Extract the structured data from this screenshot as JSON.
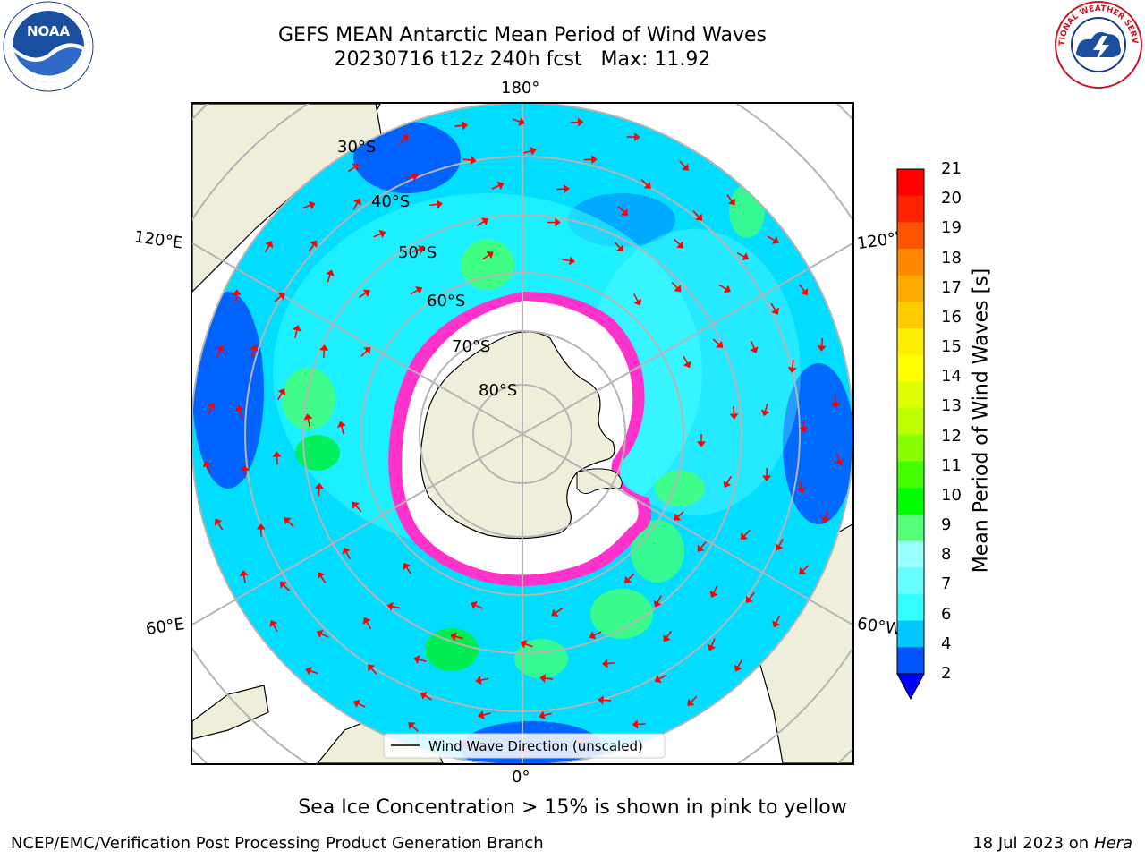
{
  "title": {
    "line1": "GEFS MEAN Antarctic Mean Period of Wind Waves",
    "line2": "20230716 t12z 240h fcst   Max: 11.92"
  },
  "map": {
    "projection": "south-polar-stereographic",
    "lon_labels": {
      "top": "180°",
      "left_upper": "120°E",
      "right_upper": "120°W",
      "left_lower": "60°E",
      "right_lower": "60°W",
      "bottom": "0°"
    },
    "lat_labels": [
      "30°S",
      "40°S",
      "50°S",
      "60°S",
      "70°S",
      "80°S"
    ],
    "legend": "Wind Wave Direction (unscaled)",
    "colors": {
      "land": "#efeedb",
      "ocean_base": "#33ffff",
      "sea_ice_pink": "#ff33cc",
      "arrow": "#ff0000"
    }
  },
  "colorbar": {
    "label": "Mean Period of Wind Waves [s]",
    "ticks": [
      "2",
      "4",
      "6",
      "7",
      "8",
      "9",
      "10",
      "11",
      "12",
      "13",
      "14",
      "15",
      "16",
      "17",
      "18",
      "19",
      "20",
      "21"
    ],
    "colors": [
      "#0055ff",
      "#00c8ff",
      "#33ffff",
      "#66ffff",
      "#99ffff",
      "#55ff77",
      "#00ff00",
      "#44ff00",
      "#88ff00",
      "#bbff00",
      "#ddff00",
      "#ffff00",
      "#ffee00",
      "#ffcc00",
      "#ffaa00",
      "#ff8800",
      "#ff5500",
      "#ff2200",
      "#ff0000"
    ],
    "extend_min_color": "#0000ff"
  },
  "caption": "Sea Ice Concentration > 15% is shown in pink to yellow",
  "footer": {
    "credit": "NCEP/EMC/Verification Post Processing Product Generation Branch",
    "date": "18 Jul 2023 on",
    "machine": "Hera"
  },
  "logos": {
    "left": "NOAA",
    "right": "NATIONAL WEATHER SERVICE"
  }
}
